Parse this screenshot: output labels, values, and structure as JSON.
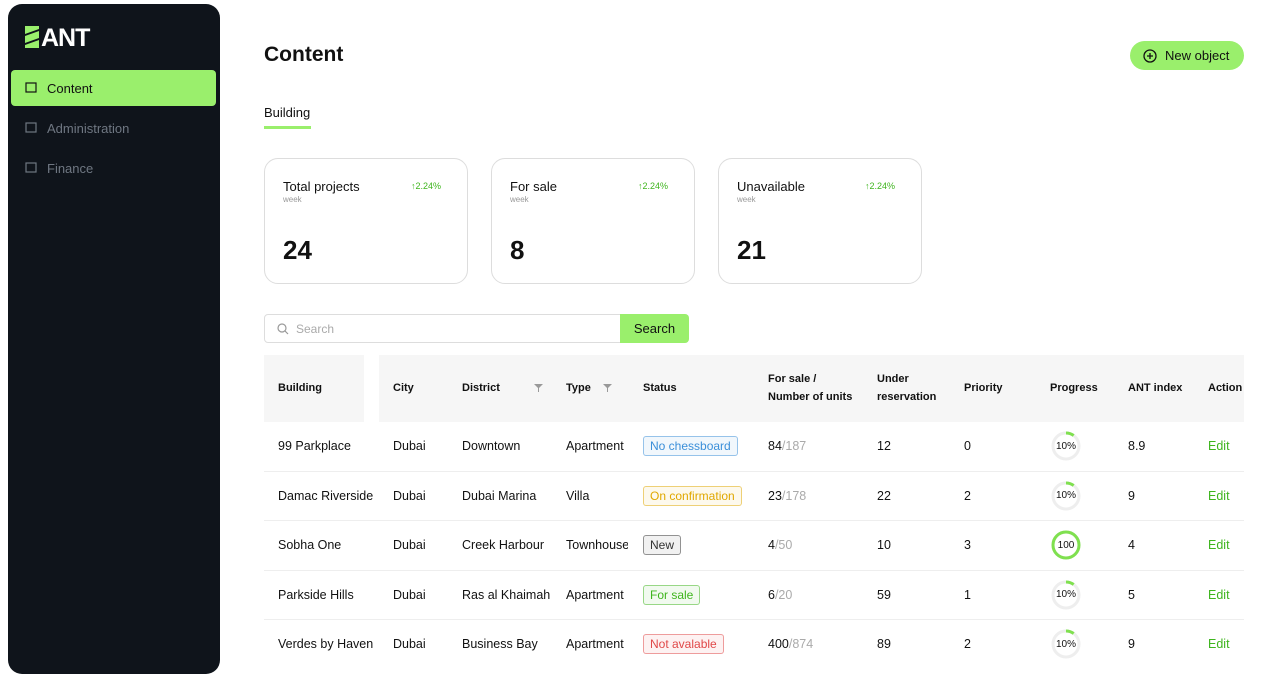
{
  "sidebar": {
    "logo": "ANT",
    "nav": [
      "Content",
      "Administration",
      "Finance"
    ]
  },
  "header": {
    "title": "Content",
    "button": "New object"
  },
  "tabs": [
    "Building"
  ],
  "stats": [
    {
      "label": "Total projects",
      "change": "↑2.24%",
      "period": "week",
      "value": "24"
    },
    {
      "label": "For sale",
      "change": "↑2.24%",
      "period": "week",
      "value": "8"
    },
    {
      "label": "Unavailable",
      "change": "↑2.24%",
      "period": "week",
      "value": "21"
    }
  ],
  "search": {
    "placeholder": "Search",
    "button": "Search"
  },
  "table": {
    "columns": [
      {
        "label": "Building"
      },
      {
        "label": "City"
      },
      {
        "label": "District",
        "filter": true
      },
      {
        "label": "Type",
        "filter": true
      },
      {
        "label": "Status"
      },
      {
        "label": "For sale /\nNumber of units"
      },
      {
        "label": "Under\nreservation"
      },
      {
        "label": "Priority"
      },
      {
        "label": "Progress"
      },
      {
        "label": "ANT index"
      },
      {
        "label": "Action"
      }
    ],
    "rows": [
      {
        "building": "99 Parkplace",
        "city": "Dubai",
        "district": "Downtown",
        "type": "Apartment",
        "status": "No chessboard",
        "status_color": "#3b8fd9",
        "for_sale": "84",
        "units": "/187",
        "reservation": "12",
        "priority": "0",
        "progress": {
          "value": 10,
          "label": "10%"
        },
        "index": "8.9",
        "action": "Edit"
      },
      {
        "building": "Damac Riverside",
        "city": "Dubai",
        "district": "Dubai Marina",
        "type": "Villa",
        "status": "On confirmation",
        "status_color": "#e0a800",
        "for_sale": "23",
        "units": "/178",
        "reservation": "22",
        "priority": "2",
        "progress": {
          "value": 10,
          "label": "10%"
        },
        "index": "9",
        "action": "Edit"
      },
      {
        "building": "Sobha One",
        "city": "Dubai",
        "district": "Creek Harbour",
        "type": "Townhouse",
        "status": "New",
        "status_color": "#333333",
        "for_sale": "4",
        "units": "/50",
        "reservation": "10",
        "priority": "3",
        "progress": {
          "value": 100,
          "label": "100"
        },
        "index": "4",
        "action": "Edit"
      },
      {
        "building": "Parkside Hills",
        "city": "Dubai",
        "district": "Ras al Khaimah",
        "type": "Apartment",
        "status": "For sale",
        "status_color": "#3fb51e",
        "for_sale": "6",
        "units": "/20",
        "reservation": "59",
        "priority": "1",
        "progress": {
          "value": 10,
          "label": "10%"
        },
        "index": "5",
        "action": "Edit"
      },
      {
        "building": "Verdes by Haven",
        "city": "Dubai",
        "district": "Business Bay",
        "type": "Apartment",
        "status": "Not avalable",
        "status_color": "#e04848",
        "for_sale": "400",
        "units": "/874",
        "reservation": "89",
        "priority": "2",
        "progress": {
          "value": 10,
          "label": "10%"
        },
        "index": "9",
        "action": "Edit"
      }
    ]
  }
}
